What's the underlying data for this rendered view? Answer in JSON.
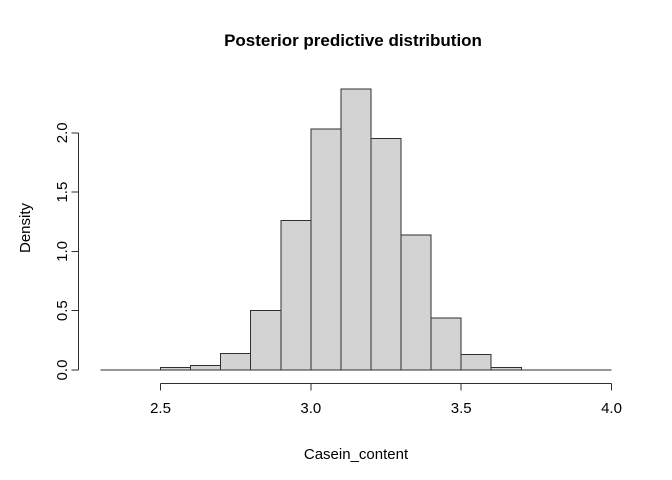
{
  "page": {
    "background": "#ffffff"
  },
  "chart_data": {
    "type": "bar",
    "subtype": "histogram",
    "title": "Posterior predictive distribution",
    "xlabel": "Casein_content",
    "ylabel": "Density",
    "bin_start": 2.3,
    "bin_width": 0.1,
    "densities": [
      0.001,
      0.003,
      0.02,
      0.04,
      0.14,
      0.5,
      1.26,
      2.03,
      2.37,
      1.95,
      1.14,
      0.44,
      0.13,
      0.02,
      0.003,
      0.001,
      0.001
    ],
    "x_ticks": [
      "2.5",
      "3.0",
      "3.5",
      "4.0"
    ],
    "x_tick_values": [
      2.5,
      3.0,
      3.5,
      4.0
    ],
    "x_axis_range": [
      2.5,
      4.0
    ],
    "xlim": [
      2.3,
      4.0
    ],
    "y_ticks": [
      "0.0",
      "0.5",
      "1.0",
      "1.5",
      "2.0"
    ],
    "y_tick_values": [
      0,
      0.5,
      1,
      1.5,
      2
    ],
    "y_axis_range": [
      0,
      2.0
    ],
    "ylim": [
      0,
      2.4
    ],
    "grid": false,
    "legend": false,
    "colors": {
      "bar_fill": "#d3d3d3",
      "bar_border": "#2f2f2f",
      "axis": "#2f2f2f",
      "text": "#000000"
    }
  }
}
